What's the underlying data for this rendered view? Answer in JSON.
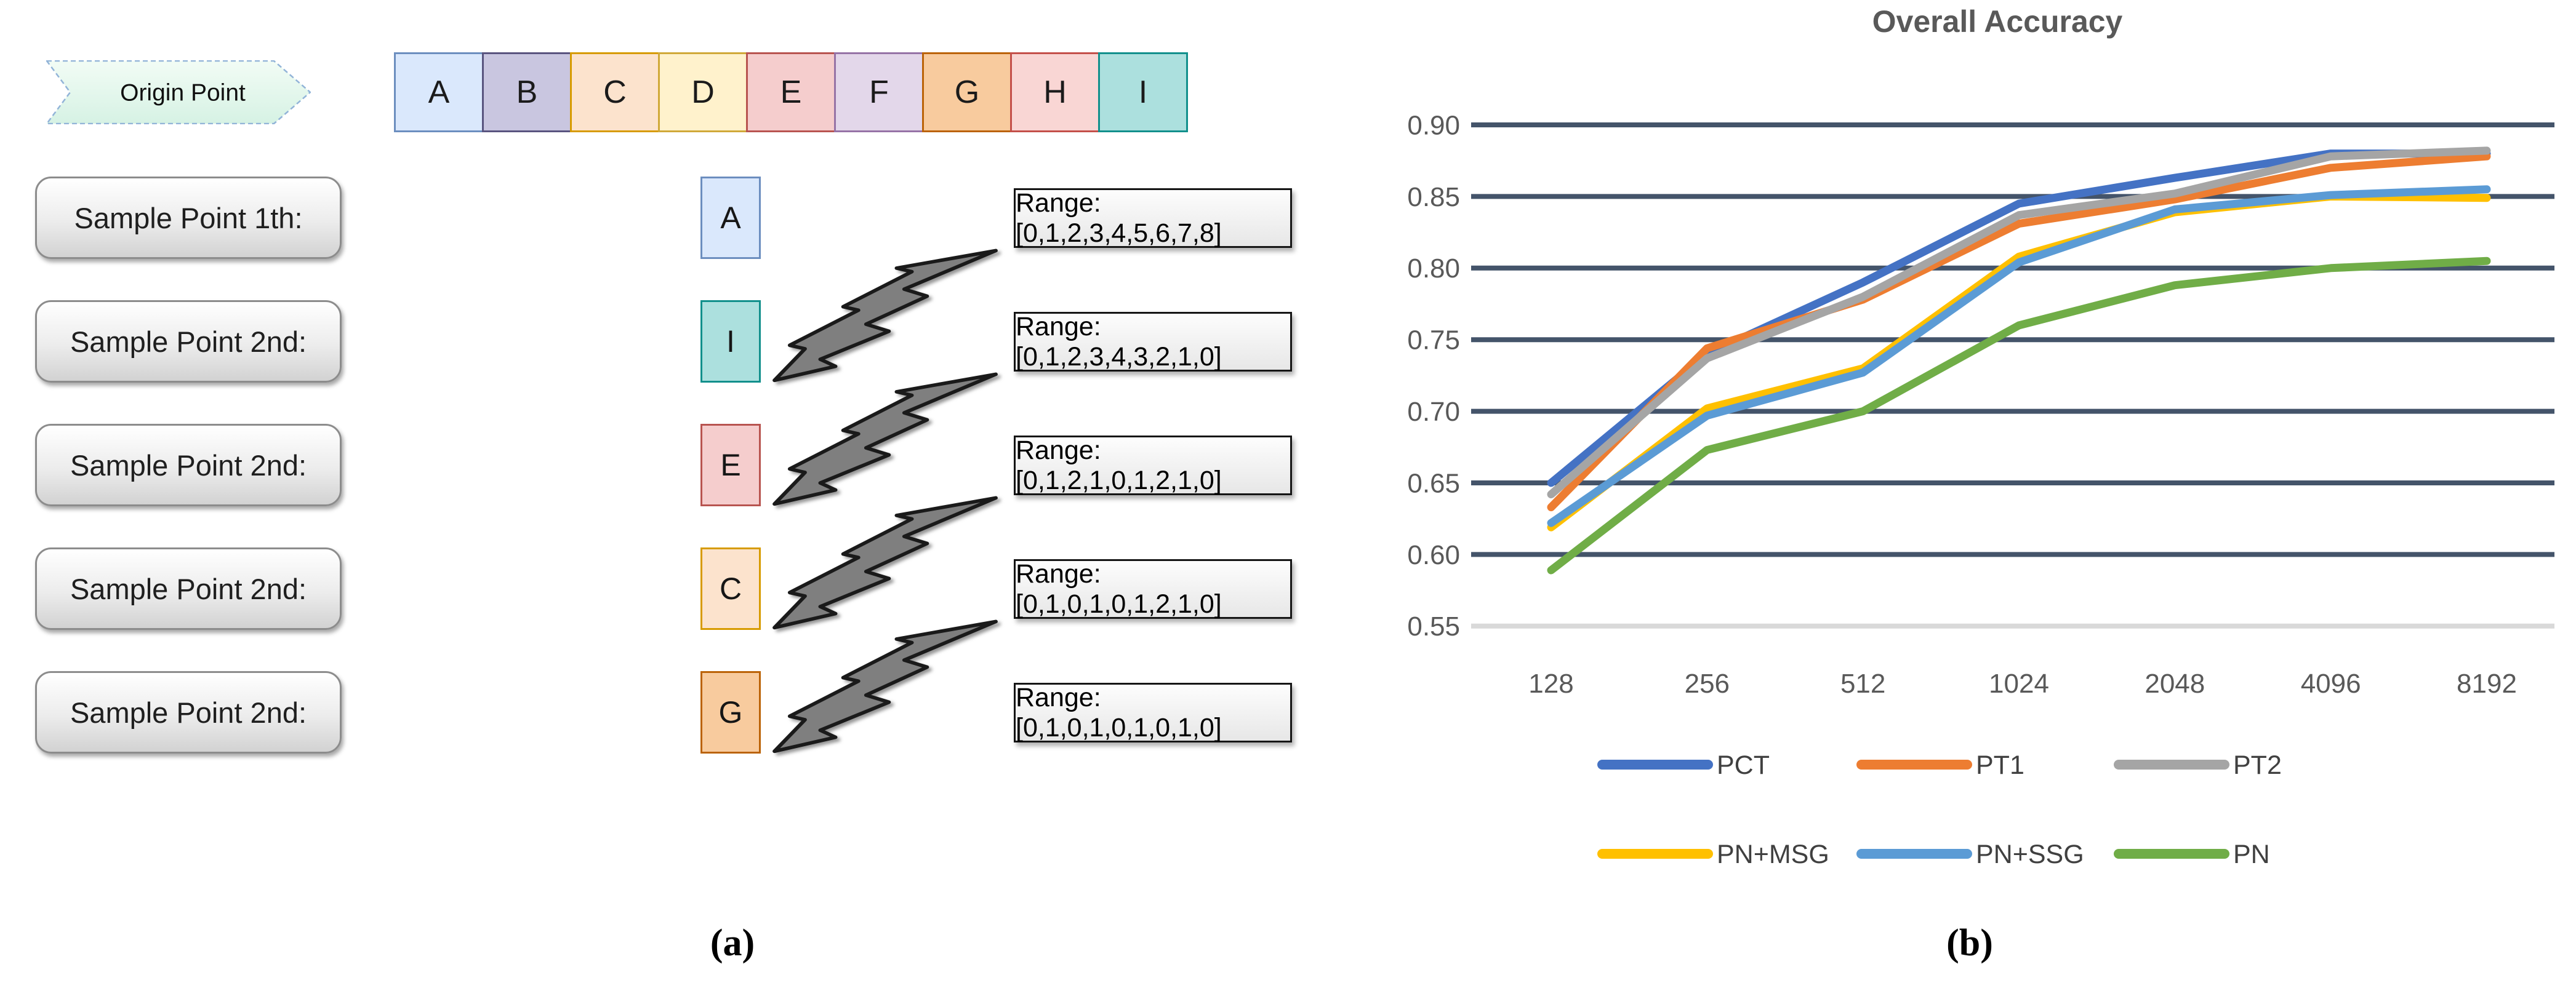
{
  "panel_a": {
    "origin_label": "Origin Point",
    "caption": "(a)",
    "sequence": [
      {
        "letter": "A",
        "fill": "#DAE8FC",
        "stroke": "#6C8EBF"
      },
      {
        "letter": "B",
        "fill": "#C9C6E0",
        "stroke": "#59547F"
      },
      {
        "letter": "C",
        "fill": "#FCE3CD",
        "stroke": "#D79B00"
      },
      {
        "letter": "D",
        "fill": "#FFF2CC",
        "stroke": "#D0A939"
      },
      {
        "letter": "E",
        "fill": "#F5CDCD",
        "stroke": "#B85450"
      },
      {
        "letter": "F",
        "fill": "#E3D7EA",
        "stroke": "#9673A6"
      },
      {
        "letter": "G",
        "fill": "#F8CB9E",
        "stroke": "#BB6307"
      },
      {
        "letter": "H",
        "fill": "#F9D6D4",
        "stroke": "#C4504A"
      },
      {
        "letter": "I",
        "fill": "#ACE0DE",
        "stroke": "#12908C"
      }
    ],
    "rows": [
      {
        "button_label": "Sample Point 1th:",
        "letter": "A",
        "range_label": "Range: [0,1,2,3,4,5,6,7,8]",
        "arrow": false
      },
      {
        "button_label": "Sample Point 2nd:",
        "letter": "I",
        "range_label": "Range: [0,1,2,3,4,3,2,1,0]",
        "arrow": true
      },
      {
        "button_label": "Sample Point 2nd:",
        "letter": "E",
        "range_label": "Range: [0,1,2,1,0,1,2,1,0]",
        "arrow": true
      },
      {
        "button_label": "Sample Point 2nd:",
        "letter": "C",
        "range_label": "Range: [0,1,0,1,0,1,2,1,0]",
        "arrow": true
      },
      {
        "button_label": "Sample Point 2nd:",
        "letter": "G",
        "range_label": "Range: [0,1,0,1,0,1,0,1,0]",
        "arrow": true
      }
    ]
  },
  "chart_data": {
    "type": "line",
    "title": "Overall Accuracy",
    "caption": "(b)",
    "x_categories": [
      "128",
      "256",
      "512",
      "1024",
      "2048",
      "4096",
      "8192"
    ],
    "y_ticks": [
      "0.90",
      "0.85",
      "0.80",
      "0.75",
      "0.70",
      "0.65",
      "0.60",
      "0.55"
    ],
    "ylim": [
      0.55,
      0.9
    ],
    "grid": "horizontal",
    "legend_position": "bottom",
    "series": [
      {
        "name": "PCT",
        "color": "#4472C4",
        "values": [
          0.65,
          0.74,
          0.79,
          0.845,
          0.863,
          0.88,
          0.88
        ]
      },
      {
        "name": "PT1",
        "color": "#ED7D31",
        "values": [
          0.633,
          0.744,
          0.778,
          0.831,
          0.848,
          0.87,
          0.878
        ]
      },
      {
        "name": "PT2",
        "color": "#A5A5A5",
        "values": [
          0.642,
          0.737,
          0.78,
          0.837,
          0.852,
          0.878,
          0.882
        ]
      },
      {
        "name": "PN+MSG",
        "color": "#FFC000",
        "values": [
          0.619,
          0.702,
          0.73,
          0.808,
          0.839,
          0.85,
          0.849
        ]
      },
      {
        "name": "PN+SSG",
        "color": "#5B9BD5",
        "values": [
          0.622,
          0.697,
          0.727,
          0.804,
          0.841,
          0.851,
          0.855
        ]
      },
      {
        "name": "PN",
        "color": "#70AD47",
        "values": [
          0.589,
          0.673,
          0.7,
          0.76,
          0.788,
          0.8,
          0.805
        ]
      }
    ],
    "legend_rows": [
      [
        "PCT",
        "PT1",
        "PT2"
      ],
      [
        "PN+MSG",
        "PN+SSG",
        "PN"
      ]
    ],
    "colors": {
      "gridline": "#44546A",
      "baseline": "#D9D9D9",
      "axis_label": "#595959",
      "title": "#595959",
      "legend_label": "#404040"
    }
  }
}
